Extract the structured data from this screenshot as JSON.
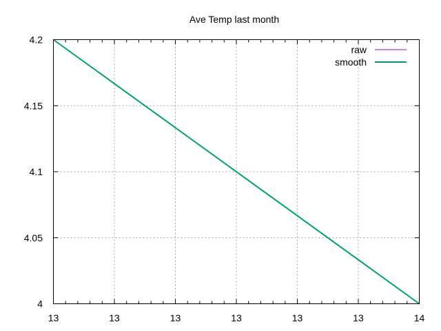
{
  "chart_data": {
    "type": "line",
    "title": "Ave Temp last month",
    "xlabel": "",
    "ylabel": "",
    "xlim": [
      13.0,
      14.0
    ],
    "ylim": [
      4.0,
      4.2
    ],
    "x_tick_labels": [
      "13",
      "13",
      "13",
      "13",
      "13",
      "13",
      "14"
    ],
    "y_tick_labels": [
      "4",
      "4.05",
      "4.1",
      "4.15",
      "4.2"
    ],
    "grid": true,
    "legend_position": "top-right",
    "series": [
      {
        "name": "raw",
        "color": "#9400d3",
        "x": [
          13.0,
          14.0
        ],
        "y": [
          4.2,
          4.0
        ]
      },
      {
        "name": "smooth",
        "color": "#009e73",
        "x": [
          13.0,
          14.0
        ],
        "y": [
          4.2,
          4.0
        ]
      }
    ]
  }
}
